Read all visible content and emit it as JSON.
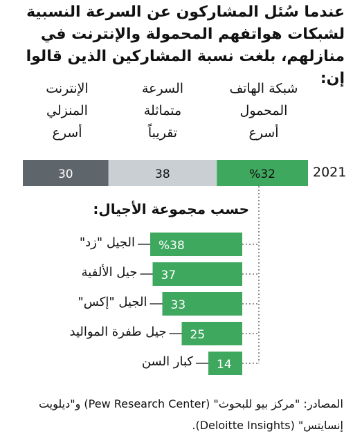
{
  "title": "عندما سُئل المشاركون عن السرعة النسبية لشبكات هواتفهم المحمولة والإنترنت في منازلهم، بلغت نسبة المشاركين الذين قالوا إن:",
  "chart_data": [
    {
      "type": "bar",
      "orientation": "horizontal-stacked",
      "row_label": "2021",
      "segments": [
        {
          "label": "شبكة الهاتف\nالمحمول\nأسرع",
          "value": 32,
          "value_label": "%32",
          "color": "#3fa85f"
        },
        {
          "label": "السرعة\nمتماثلة\nتقريباً",
          "value": 38,
          "value_label": "38",
          "color": "#c9cfd3"
        },
        {
          "label": "الإنترنت\nالمنزلي\nأسرع",
          "value": 30,
          "value_label": "30",
          "color": "#5f666b"
        }
      ],
      "xlim": [
        0,
        100
      ]
    },
    {
      "type": "bar",
      "orientation": "horizontal",
      "title": "حسب مجموعة الأجيال:",
      "categories": [
        "الجيل \"زد\"",
        "جيل الألفية",
        "الجيل \"إكس\"",
        "جيل طفرة المواليد",
        "كبار السن"
      ],
      "values": [
        38,
        37,
        33,
        25,
        14
      ],
      "value_labels": [
        "%38",
        "37",
        "33",
        "25",
        "14"
      ],
      "color": "#3fa85f",
      "xlim": [
        0,
        100
      ]
    }
  ],
  "source": "المصادر: \"مركز بيو للبحوث\" (Pew Research Center) و\"ديلويت إنسايتس\" (Deloitte Insights)."
}
